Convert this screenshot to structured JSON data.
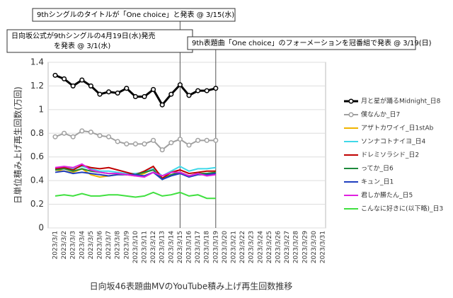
{
  "chart_data": {
    "type": "line",
    "ylabel": "日単位積み上げ再生回数(万回)",
    "xlabel": "日向坂46表題曲MVのYouTube積み上げ再生回数推移",
    "categories": [
      "2023/3/1",
      "2023/3/2",
      "2023/3/3",
      "2023/3/4",
      "2023/3/5",
      "2023/3/6",
      "2023/3/7",
      "2023/3/8",
      "2023/3/9",
      "2023/3/10",
      "2023/3/11",
      "2023/3/12",
      "2023/3/13",
      "2023/3/14",
      "2023/3/15",
      "2023/3/16",
      "2023/3/17",
      "2023/3/18",
      "2023/3/19",
      "2023/3/20",
      "2023/3/21",
      "2023/3/22",
      "2023/3/23",
      "2023/3/24",
      "2023/3/25",
      "2023/3/26",
      "2023/3/27",
      "2023/3/28",
      "2023/3/29",
      "2023/3/30",
      "2023/3/31"
    ],
    "ylim": [
      0,
      1.4
    ],
    "yticks": [
      0,
      0.2,
      0.4,
      0.6,
      0.8,
      1,
      1.2,
      1.4
    ],
    "grid": true,
    "series": [
      {
        "name": "月と星が踊るMidnight_日8",
        "color": "#000000",
        "marker": true,
        "width": 3,
        "values": [
          1.29,
          1.26,
          1.2,
          1.25,
          1.2,
          1.13,
          1.15,
          1.14,
          1.18,
          1.11,
          1.11,
          1.17,
          1.04,
          1.13,
          1.21,
          1.12,
          1.16,
          1.16,
          1.18,
          null,
          null,
          null,
          null,
          null,
          null,
          null,
          null,
          null,
          null,
          null,
          null
        ]
      },
      {
        "name": "僕なんか_日7",
        "color": "#a0a0a0",
        "marker": true,
        "width": 2,
        "values": [
          0.77,
          0.8,
          0.77,
          0.82,
          0.81,
          0.78,
          0.77,
          0.73,
          0.71,
          0.71,
          0.71,
          0.74,
          0.66,
          0.72,
          0.75,
          0.7,
          0.74,
          0.74,
          0.74,
          null,
          null,
          null,
          null,
          null,
          null,
          null,
          null,
          null,
          null,
          null,
          null
        ]
      },
      {
        "name": "アザトカワイイ_日1stAb",
        "color": "#f0b400",
        "marker": false,
        "width": 2,
        "values": [
          0.49,
          0.48,
          0.47,
          0.5,
          0.45,
          0.43,
          0.44,
          0.45,
          0.45,
          0.44,
          0.46,
          0.5,
          0.42,
          0.45,
          0.47,
          0.44,
          0.46,
          0.46,
          0.47,
          null,
          null,
          null,
          null,
          null,
          null,
          null,
          null,
          null,
          null,
          null,
          null
        ]
      },
      {
        "name": "ソンナコトナイヨ_日4",
        "color": "#40d8e8",
        "marker": false,
        "width": 2,
        "values": [
          0.5,
          0.51,
          0.5,
          0.52,
          0.5,
          0.48,
          0.48,
          0.47,
          0.46,
          0.46,
          0.47,
          0.5,
          0.44,
          0.48,
          0.52,
          0.48,
          0.5,
          0.5,
          0.51,
          null,
          null,
          null,
          null,
          null,
          null,
          null,
          null,
          null,
          null,
          null,
          null
        ]
      },
      {
        "name": "ドレミソラシド_日2",
        "color": "#c00000",
        "marker": false,
        "width": 2,
        "values": [
          0.5,
          0.51,
          0.49,
          0.53,
          0.51,
          0.5,
          0.51,
          0.49,
          0.47,
          0.45,
          0.48,
          0.52,
          0.42,
          0.47,
          0.49,
          0.46,
          0.47,
          0.48,
          0.48,
          null,
          null,
          null,
          null,
          null,
          null,
          null,
          null,
          null,
          null,
          null,
          null
        ]
      },
      {
        "name": "ってか_日6",
        "color": "#1e8a3c",
        "marker": false,
        "width": 2,
        "values": [
          0.49,
          0.5,
          0.48,
          0.5,
          0.48,
          0.47,
          0.46,
          0.46,
          0.45,
          0.45,
          0.47,
          0.49,
          0.41,
          0.45,
          0.47,
          0.44,
          0.46,
          0.46,
          0.47,
          null,
          null,
          null,
          null,
          null,
          null,
          null,
          null,
          null,
          null,
          null,
          null
        ]
      },
      {
        "name": "キュン_日1",
        "color": "#1f3fbf",
        "marker": false,
        "width": 2,
        "values": [
          0.47,
          0.48,
          0.46,
          0.47,
          0.46,
          0.45,
          0.44,
          0.45,
          0.45,
          0.45,
          0.44,
          0.47,
          0.41,
          0.44,
          0.46,
          0.43,
          0.45,
          0.45,
          0.46,
          null,
          null,
          null,
          null,
          null,
          null,
          null,
          null,
          null,
          null,
          null,
          null
        ]
      },
      {
        "name": "君しか勝たん_日5",
        "color": "#e020e0",
        "marker": false,
        "width": 2,
        "values": [
          0.51,
          0.52,
          0.51,
          0.54,
          0.49,
          0.47,
          0.46,
          0.46,
          0.45,
          0.44,
          0.43,
          0.47,
          0.44,
          0.47,
          0.47,
          0.44,
          0.46,
          0.44,
          0.45,
          null,
          null,
          null,
          null,
          null,
          null,
          null,
          null,
          null,
          null,
          null,
          null
        ]
      },
      {
        "name": "こんなに好きに(以下略)_日3",
        "color": "#40e040",
        "marker": false,
        "width": 2,
        "values": [
          0.27,
          0.28,
          0.27,
          0.29,
          0.27,
          0.27,
          0.28,
          0.28,
          0.27,
          0.26,
          0.27,
          0.3,
          0.27,
          0.28,
          0.3,
          0.27,
          0.28,
          0.25,
          0.25,
          null,
          null,
          null,
          null,
          null,
          null,
          null,
          null,
          null,
          null,
          null,
          null
        ]
      }
    ],
    "annotations": [
      {
        "text": [
          "9thシングルのタイトルが「One choice」と発表 @ 3/15(水)"
        ],
        "x": "2023/3/15"
      },
      {
        "text": [
          "日向坂公式が9thシングルの4月19日(水)発売",
          "を発表 @ 3/1(水)"
        ]
      },
      {
        "text": [
          "9th表題曲「One choice」のフォーメーションを冠番組で発表 @ 3/19(日)"
        ],
        "x": "2023/3/19"
      }
    ]
  }
}
